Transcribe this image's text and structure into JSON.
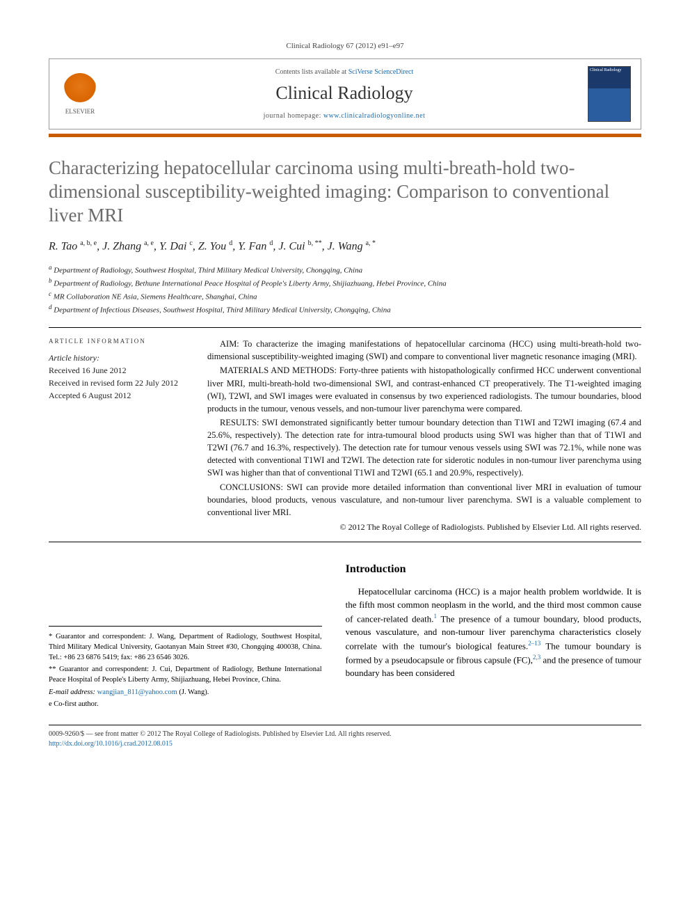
{
  "citation": "Clinical Radiology 67 (2012) e91–e97",
  "header": {
    "contents_prefix": "Contents lists available at ",
    "contents_link": "SciVerse ScienceDirect",
    "journal_name": "Clinical Radiology",
    "homepage_prefix": "journal homepage: ",
    "homepage_url": "www.clinicalradiologyonline.net",
    "elsevier_label": "ELSEVIER",
    "cover_label": "Clinical Radiology"
  },
  "title": "Characterizing hepatocellular carcinoma using multi-breath-hold two-dimensional susceptibility-weighted imaging: Comparison to conventional liver MRI",
  "authors_html": "R. Tao <sup>a, b, e</sup>, J. Zhang <sup>a, e</sup>, Y. Dai <sup>c</sup>, Z. You <sup>d</sup>, Y. Fan <sup>d</sup>, J. Cui <sup>b, **</sup>, J. Wang <sup>a, *</sup>",
  "affiliations": {
    "a": "Department of Radiology, Southwest Hospital, Third Military Medical University, Chongqing, China",
    "b": "Department of Radiology, Bethune International Peace Hospital of People's Liberty Army, Shijiazhuang, Hebei Province, China",
    "c": "MR Collaboration NE Asia, Siemens Healthcare, Shanghai, China",
    "d": "Department of Infectious Diseases, Southwest Hospital, Third Military Medical University, Chongqing, China"
  },
  "article_info_head": "ARTICLE INFORMATION",
  "article_history": {
    "head": "Article history:",
    "received": "Received 16 June 2012",
    "revised": "Received in revised form 22 July 2012",
    "accepted": "Accepted 6 August 2012"
  },
  "abstract": {
    "aim": "AIM: To characterize the imaging manifestations of hepatocellular carcinoma (HCC) using multi-breath-hold two-dimensional susceptibility-weighted imaging (SWI) and compare to conventional liver magnetic resonance imaging (MRI).",
    "methods": "MATERIALS AND METHODS: Forty-three patients with histopathologically confirmed HCC underwent conventional liver MRI, multi-breath-hold two-dimensional SWI, and contrast-enhanced CT preoperatively. The T1-weighted imaging (WI), T2WI, and SWI images were evaluated in consensus by two experienced radiologists. The tumour boundaries, blood products in the tumour, venous vessels, and non-tumour liver parenchyma were compared.",
    "results": "RESULTS: SWI demonstrated significantly better tumour boundary detection than T1WI and T2WI imaging (67.4 and 25.6%, respectively). The detection rate for intra-tumoural blood products using SWI was higher than that of T1WI and T2WI (76.7 and 16.3%, respectively). The detection rate for tumour venous vessels using SWI was 72.1%, while none was detected with conventional T1WI and T2WI. The detection rate for siderotic nodules in non-tumour liver parenchyma using SWI was higher than that of conventional T1WI and T2WI (65.1 and 20.9%, respectively).",
    "conclusions": "CONCLUSIONS: SWI can provide more detailed information than conventional liver MRI in evaluation of tumour boundaries, blood products, venous vasculature, and non-tumour liver parenchyma. SWI is a valuable complement to conventional liver MRI.",
    "copyright": "© 2012 The Royal College of Radiologists. Published by Elsevier Ltd. All rights reserved."
  },
  "footnotes": {
    "star": "* Guarantor and correspondent: J. Wang, Department of Radiology, Southwest Hospital, Third Military Medical University, Gaotanyan Main Street #30, Chongqing 400038, China. Tel.: +86 23 6876 5419; fax: +86 23 6546 3026.",
    "dstar": "** Guarantor and correspondent: J. Cui, Department of Radiology, Bethune International Peace Hospital of People's Liberty Army, Shijiazhuang, Hebei Province, China.",
    "email_label": "E-mail address: ",
    "email": "wangjian_811@yahoo.com",
    "email_suffix": " (J. Wang).",
    "cofirst": "e Co-first author."
  },
  "introduction": {
    "heading": "Introduction",
    "para": "Hepatocellular carcinoma (HCC) is a major health problem worldwide. It is the fifth most common neoplasm in the world, and the third most common cause of cancer-related death.¹ The presence of a tumour boundary, blood products, venous vasculature, and non-tumour liver parenchyma characteristics closely correlate with the tumour's biological features.²⁻¹³ The tumour boundary is formed by a pseudocapsule or fibrous capsule (FC),²,³ and the presence of tumour boundary has been considered"
  },
  "bottom": {
    "issn_line": "0009-9260/$ — see front matter © 2012 The Royal College of Radiologists. Published by Elsevier Ltd. All rights reserved.",
    "doi": "http://dx.doi.org/10.1016/j.crad.2012.08.015"
  },
  "colors": {
    "orange_bar": "#c85a00",
    "title_gray": "#6b6b6b",
    "link_blue": "#1b6ab0",
    "elsevier_orange": "#e67817"
  }
}
